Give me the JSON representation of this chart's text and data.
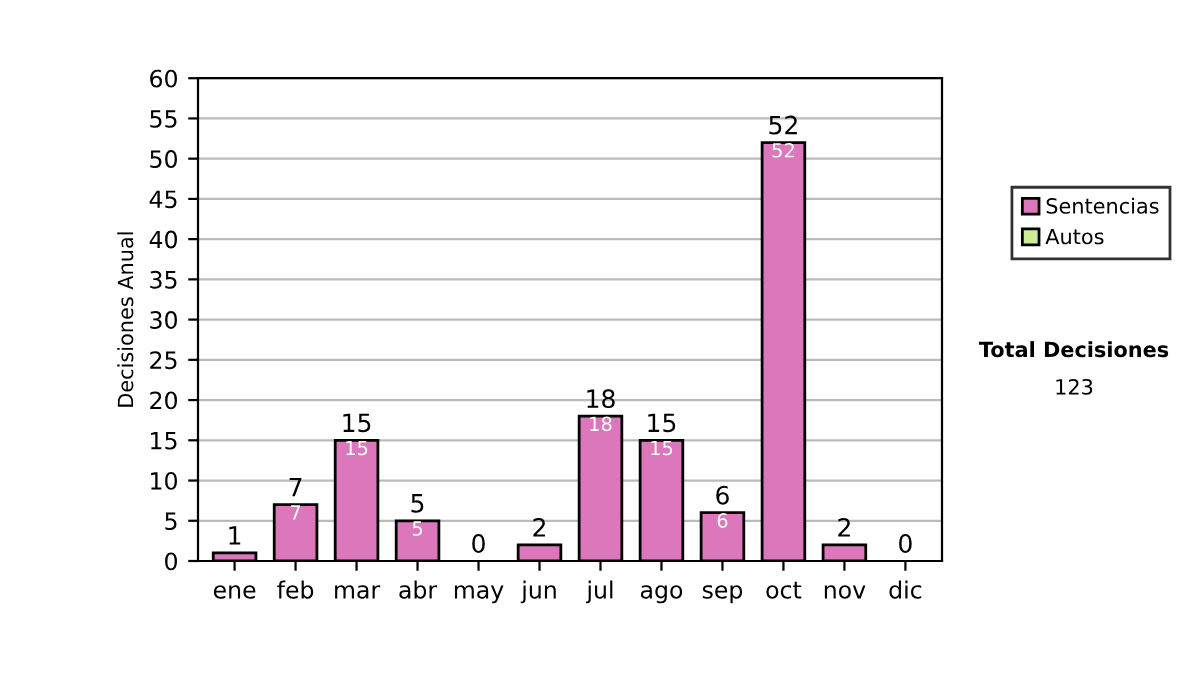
{
  "chart_data": {
    "type": "bar",
    "ylabel": "Decisiones Anual",
    "categories": [
      "ene",
      "feb",
      "mar",
      "abr",
      "may",
      "jun",
      "jul",
      "ago",
      "sep",
      "oct",
      "nov",
      "dic"
    ],
    "stacked": true,
    "series": [
      {
        "name": "Sentencias",
        "color": "#dd77bb",
        "values": [
          1,
          7,
          15,
          5,
          0,
          2,
          18,
          15,
          6,
          52,
          2,
          0
        ],
        "value_labels": [
          null,
          "7",
          "15",
          "5",
          null,
          null,
          "18",
          "15",
          "6",
          "52",
          null,
          null
        ]
      },
      {
        "name": "Autos",
        "color": "#ccee99",
        "values": [
          0,
          0,
          0,
          0,
          0,
          0,
          0,
          0,
          0,
          0,
          0,
          0
        ]
      }
    ],
    "totals": [
      "1",
      "7",
      "15",
      "5",
      "0",
      "2",
      "18",
      "15",
      "6",
      "52",
      "2",
      "0"
    ],
    "ylim": [
      0,
      60
    ],
    "yticks": [
      0,
      5,
      10,
      15,
      20,
      25,
      30,
      35,
      40,
      45,
      50,
      55,
      60
    ],
    "grid": "y",
    "legend": "right",
    "annotations": [
      "Total Decisiones",
      "123"
    ]
  }
}
